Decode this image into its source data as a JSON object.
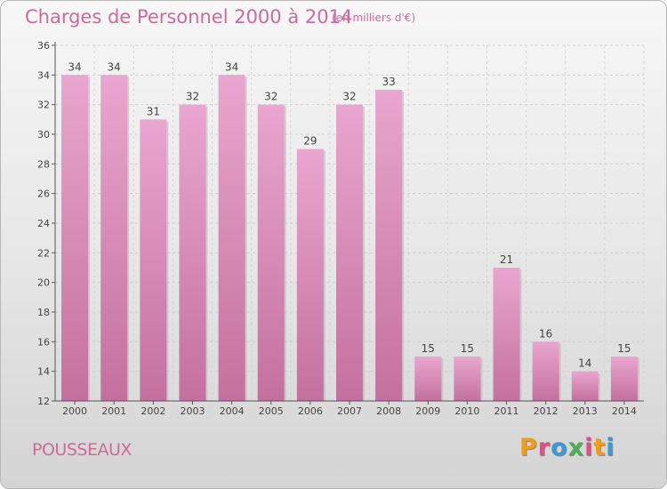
{
  "title": "Charges de Personnel 2000 à 2014",
  "subtitle": "(en milliers d'€)",
  "commune": "POUSSEAUX",
  "logo": {
    "letters": [
      "P",
      "r",
      "o",
      "x",
      "i",
      "t",
      "i"
    ],
    "colors": [
      "#f39c12",
      "#e84a8a",
      "#3a9ad9",
      "#4caf50",
      "#e84a8a",
      "#f39c12",
      "#3a9ad9"
    ]
  },
  "colors": {
    "bar_light": "#e9a6cf",
    "bar_dark": "#c4709e",
    "text_accent": "#d0699a"
  },
  "chart_data": {
    "type": "bar",
    "categories": [
      "2000",
      "2001",
      "2002",
      "2003",
      "2004",
      "2005",
      "2006",
      "2007",
      "2008",
      "2009",
      "2010",
      "2011",
      "2012",
      "2013",
      "2014"
    ],
    "values": [
      34,
      34,
      31,
      32,
      34,
      32,
      29,
      32,
      33,
      15,
      15,
      21,
      16,
      14,
      15
    ],
    "ylim": [
      12,
      36
    ],
    "yticks": [
      12,
      14,
      16,
      18,
      20,
      22,
      24,
      26,
      28,
      30,
      32,
      34,
      36
    ],
    "grid": true
  }
}
